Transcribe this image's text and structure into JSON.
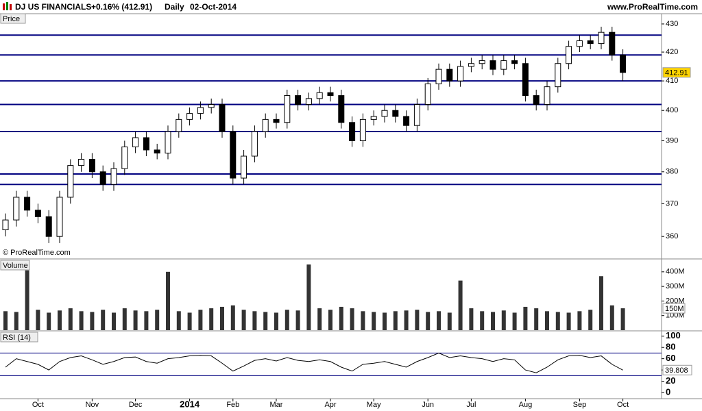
{
  "header": {
    "symbol": "DJ US FINANCIALS",
    "change": "+0.16% (412.91)",
    "period": "Daily",
    "date": "02-Oct-2014",
    "site": "www.ProRealTime.com"
  },
  "chart_data": [
    {
      "type": "candlestick",
      "title": "Price",
      "annotation": "© ProRealTime.com",
      "log": true,
      "ylim": [
        353.5,
        433.7
      ],
      "yticks": [
        360,
        370,
        380,
        390,
        400,
        410,
        420,
        430
      ],
      "up_color": "#ffffff",
      "down_color": "#000000",
      "line_color": "#000080",
      "lines": [
        426,
        419,
        410,
        402,
        393,
        379.3,
        376
      ],
      "open": [
        362,
        365,
        372,
        368,
        366,
        360,
        372,
        382,
        384,
        380,
        376,
        381,
        388,
        391,
        387,
        386,
        393,
        397,
        399,
        401,
        402,
        393,
        378,
        385,
        393,
        397,
        396,
        405,
        402,
        404,
        406,
        405,
        396,
        390,
        397,
        398,
        400,
        398,
        395,
        402,
        409,
        414,
        410,
        415,
        416,
        417,
        414,
        417,
        416,
        405,
        402,
        408,
        416,
        422,
        424,
        423,
        427,
        419
      ],
      "high": [
        367,
        374,
        374,
        370,
        368,
        374,
        384,
        386,
        386,
        382,
        383,
        390,
        393,
        393,
        389,
        395,
        399,
        401,
        403,
        404,
        404,
        395,
        387,
        395,
        399,
        399,
        407,
        407,
        406,
        408,
        408,
        407,
        398,
        399,
        400,
        402,
        402,
        400,
        404,
        411,
        416,
        416,
        417,
        418,
        419,
        419,
        419,
        419,
        418,
        407,
        410,
        418,
        424,
        426,
        426,
        429,
        429,
        421
      ],
      "low": [
        360,
        363,
        366,
        364,
        358,
        358,
        370,
        380,
        378,
        374,
        374,
        379,
        386,
        385,
        384,
        384,
        391,
        395,
        397,
        399,
        391,
        376,
        376,
        383,
        391,
        394,
        394,
        400,
        400,
        402,
        403,
        394,
        388,
        388,
        395,
        396,
        396,
        393,
        393,
        400,
        407,
        408,
        408,
        413,
        414,
        412,
        412,
        414,
        403,
        400,
        400,
        406,
        414,
        420,
        421,
        421,
        417,
        410
      ],
      "close": [
        365,
        372,
        368,
        366,
        360,
        372,
        382,
        384,
        380,
        376,
        381,
        388,
        391,
        387,
        386,
        393,
        397,
        399,
        401,
        402,
        393,
        378,
        385,
        393,
        397,
        396,
        405,
        402,
        404,
        406,
        405,
        396,
        390,
        397,
        398,
        400,
        398,
        395,
        402,
        409,
        414,
        410,
        415,
        416,
        417,
        414,
        417,
        416,
        405,
        402,
        408,
        416,
        422,
        424,
        423,
        427,
        419,
        412.91
      ]
    },
    {
      "type": "bar",
      "title": "Volume",
      "color": "#333333",
      "ylim": [
        0,
        479000000
      ],
      "yticks": [
        {
          "value": 100000000,
          "label": "100M"
        },
        {
          "value": 200000000,
          "label": "200M"
        },
        {
          "value": 300000000,
          "label": "300M"
        },
        {
          "value": 400000000,
          "label": "400M"
        }
      ],
      "values": [
        130000000,
        125000000,
        410000000,
        140000000,
        120000000,
        135000000,
        150000000,
        130000000,
        125000000,
        140000000,
        120000000,
        150000000,
        135000000,
        130000000,
        140000000,
        400000000,
        130000000,
        120000000,
        140000000,
        150000000,
        160000000,
        170000000,
        140000000,
        130000000,
        125000000,
        120000000,
        140000000,
        135000000,
        450000000,
        150000000,
        140000000,
        160000000,
        150000000,
        130000000,
        125000000,
        120000000,
        130000000,
        135000000,
        140000000,
        125000000,
        130000000,
        120000000,
        340000000,
        150000000,
        130000000,
        125000000,
        135000000,
        120000000,
        160000000,
        150000000,
        130000000,
        125000000,
        120000000,
        130000000,
        140000000,
        370000000,
        170000000,
        150000000
      ],
      "value_labels": [
        null,
        null,
        null,
        null,
        null,
        null,
        null,
        null,
        null,
        null,
        null,
        null,
        null,
        null,
        null,
        null,
        null,
        null,
        null,
        null,
        null,
        null,
        null,
        null,
        null,
        null,
        null,
        null,
        null,
        null,
        null,
        null,
        null,
        null,
        null,
        null,
        null,
        null,
        null,
        null,
        null,
        null,
        null,
        null,
        null,
        null,
        null,
        null,
        null,
        null,
        null,
        null,
        null,
        null,
        null,
        null,
        null,
        "150M"
      ]
    },
    {
      "type": "line",
      "title": "RSI (14)",
      "color": "#000000",
      "level_color": "#000080",
      "ylim": [
        -8.5,
        107
      ],
      "yticks": [
        0,
        20,
        40,
        60,
        80,
        100
      ],
      "levels": [
        30,
        70
      ],
      "categories": [
        null,
        null,
        null,
        "Oct",
        null,
        null,
        null,
        null,
        "Nov",
        null,
        null,
        null,
        "Dec",
        null,
        null,
        null,
        null,
        "2014",
        null,
        null,
        null,
        "Feb",
        null,
        null,
        null,
        "Mar",
        null,
        null,
        null,
        null,
        "Apr",
        null,
        null,
        null,
        "May",
        null,
        null,
        null,
        null,
        "Jun",
        null,
        null,
        null,
        "Jul",
        null,
        null,
        null,
        null,
        "Aug",
        null,
        null,
        null,
        null,
        "Sep",
        null,
        null,
        null,
        "Oct"
      ],
      "values": [
        45,
        60,
        55,
        50,
        40,
        55,
        62,
        65,
        58,
        50,
        55,
        62,
        63,
        55,
        52,
        60,
        62,
        65,
        66,
        65,
        52,
        38,
        47,
        57,
        60,
        56,
        62,
        57,
        55,
        58,
        55,
        45,
        38,
        50,
        52,
        55,
        50,
        45,
        55,
        62,
        70,
        62,
        65,
        62,
        60,
        55,
        60,
        58,
        40,
        35,
        45,
        58,
        65,
        66,
        62,
        65,
        50,
        39.808
      ]
    }
  ]
}
